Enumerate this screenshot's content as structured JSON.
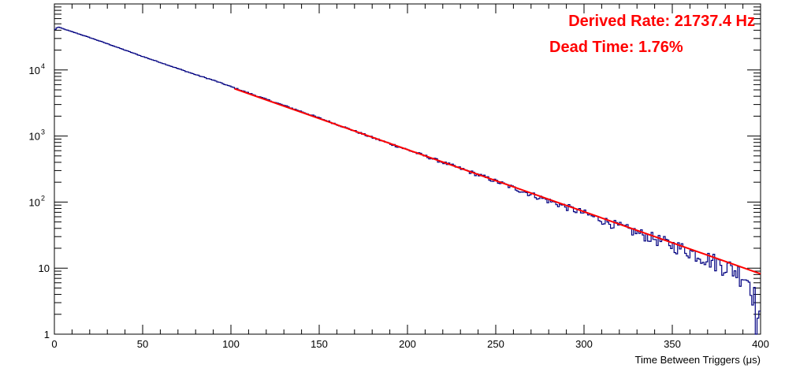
{
  "chart_data": {
    "type": "line",
    "xlabel": "Time Between Triggers (μs)",
    "xlim": [
      0,
      400
    ],
    "ylim": [
      1,
      100000
    ],
    "y_scale": "log",
    "x_ticks": [
      "0",
      "50",
      "100",
      "150",
      "200",
      "250",
      "300",
      "350",
      "400"
    ],
    "y_ticks": [
      {
        "value": 1,
        "label": "1"
      },
      {
        "value": 10,
        "label": "10"
      },
      {
        "value": 100,
        "label": "10",
        "exp": "2"
      },
      {
        "value": 1000,
        "label": "10",
        "exp": "3"
      },
      {
        "value": 10000,
        "label": "10",
        "exp": "4"
      }
    ],
    "grid": false,
    "series": [
      {
        "role": "histogram",
        "color": "#000080",
        "x": [
          0,
          2,
          5,
          10,
          20,
          30,
          40,
          50,
          60,
          70,
          80,
          90,
          100,
          120,
          140,
          160,
          180,
          200,
          220,
          240,
          260,
          280,
          300,
          320,
          340,
          360,
          380,
          390,
          395,
          398,
          400
        ],
        "y": [
          40000,
          45000,
          42000,
          38000,
          31000,
          25000,
          20000,
          16000,
          13000,
          10500,
          8500,
          7000,
          5600,
          3600,
          2350,
          1500,
          950,
          620,
          400,
          260,
          165,
          105,
          68,
          43,
          28,
          18,
          11,
          8,
          6,
          2,
          1
        ]
      },
      {
        "role": "fit",
        "color": "#ff0000",
        "x": [
          102,
          400
        ],
        "y": [
          5200,
          8.2
        ]
      }
    ],
    "annotations": [
      {
        "text": "Derived Rate: 21737.4 Hz",
        "color": "#ff0000"
      },
      {
        "text": "Dead Time: 1.76%",
        "color": "#ff0000"
      }
    ]
  }
}
